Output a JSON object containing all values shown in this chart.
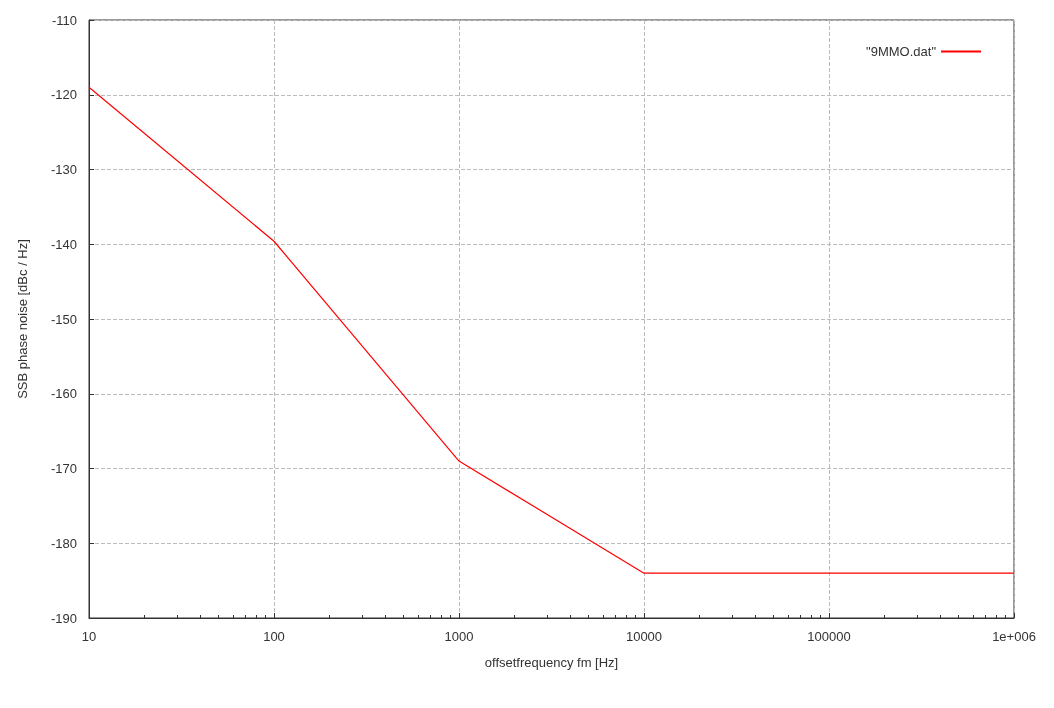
{
  "chart_data": {
    "type": "line",
    "xlabel": "offsetfrequency fm [Hz]",
    "ylabel": "SSB phase noise [dBc / Hz]",
    "x": [
      10,
      100,
      1000,
      10000,
      1000000
    ],
    "series": [
      {
        "name": "\"9MMO.dat\"",
        "color": "#ff0000",
        "values": [
          -119,
          -139.6,
          -169,
          -184,
          -184
        ]
      }
    ],
    "log": "x",
    "xlim": [
      10,
      1000000
    ],
    "xticks": [
      10,
      100,
      1000,
      10000,
      100000,
      {
        "value": 1000000,
        "label": "1e+006"
      }
    ],
    "ylim": [
      -190,
      -110
    ],
    "yticks": [
      -190,
      -180,
      -170,
      -160,
      -150,
      -140,
      -130,
      -120,
      -110
    ],
    "grid": true,
    "legend": "top right",
    "marker": "none",
    "line_style": "solid"
  }
}
